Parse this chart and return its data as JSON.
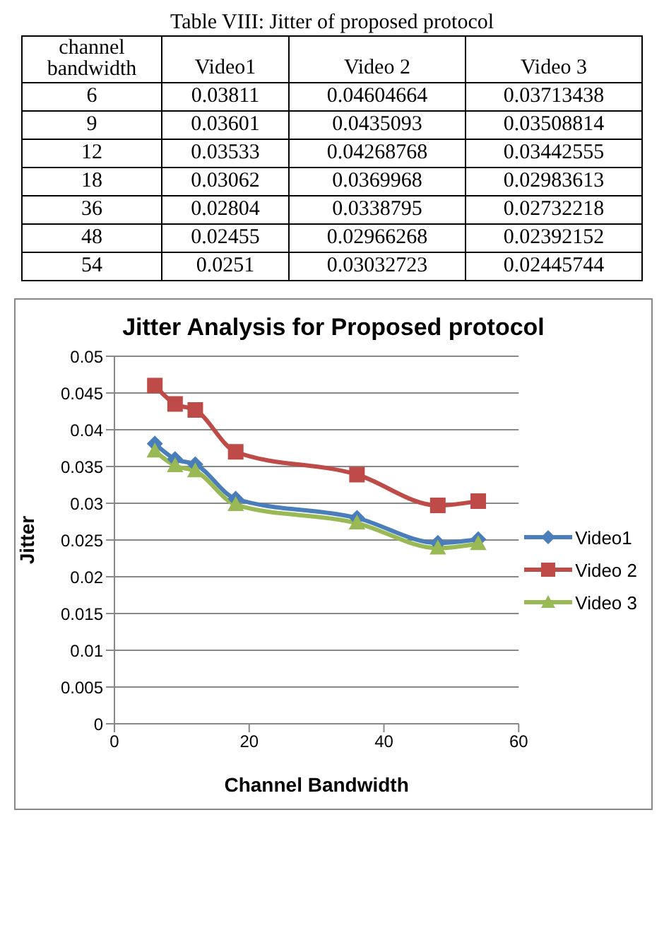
{
  "chart_data": [
    {
      "type": "other",
      "title": "Table VIII: Jitter of proposed protocol",
      "xlabel": "channel bandwidth",
      "categories": [
        "6",
        "9",
        "12",
        "18",
        "36",
        "48",
        "54"
      ],
      "series": [
        {
          "name": "Video1",
          "values": [
            0.03811,
            0.03601,
            0.03533,
            0.03062,
            0.02804,
            0.02455,
            0.0251
          ]
        },
        {
          "name": "Video 2",
          "values": [
            0.04604664,
            0.0435093,
            0.04268768,
            0.0369968,
            0.0338795,
            0.02966268,
            0.03032723
          ]
        },
        {
          "name": "Video 3",
          "values": [
            0.03713438,
            0.03508814,
            0.03442555,
            0.02983613,
            0.02732218,
            0.02392152,
            0.02445744
          ]
        }
      ],
      "data_labels": true
    },
    {
      "type": "line",
      "title": "Jitter Analysis for Proposed protocol",
      "xlabel": "Channel Bandwidth",
      "ylabel": "Jitter",
      "x": [
        6,
        9,
        12,
        18,
        36,
        48,
        54
      ],
      "series": [
        {
          "name": "Video1",
          "color": "#4a7ebb",
          "marker": "diamond",
          "values": [
            0.0381,
            0.036,
            0.0353,
            0.0306,
            0.028,
            0.0246,
            0.0251
          ]
        },
        {
          "name": "Video 2",
          "color": "#be4b48",
          "marker": "square",
          "values": [
            0.046,
            0.0435,
            0.0427,
            0.037,
            0.0339,
            0.0297,
            0.0303
          ]
        },
        {
          "name": "Video 3",
          "color": "#98b954",
          "marker": "triangle",
          "values": [
            0.0371,
            0.0351,
            0.0344,
            0.0298,
            0.0273,
            0.0239,
            0.0245
          ]
        }
      ],
      "xlim": [
        0,
        60
      ],
      "xticks": [
        0,
        20,
        40,
        60
      ],
      "ylim": [
        0,
        0.05
      ],
      "yticks": [
        0,
        0.005,
        0.01,
        0.015,
        0.02,
        0.025,
        0.03,
        0.035,
        0.04,
        0.045,
        0.05
      ],
      "grid": "y",
      "legend": "right",
      "line_style": "solid"
    }
  ]
}
